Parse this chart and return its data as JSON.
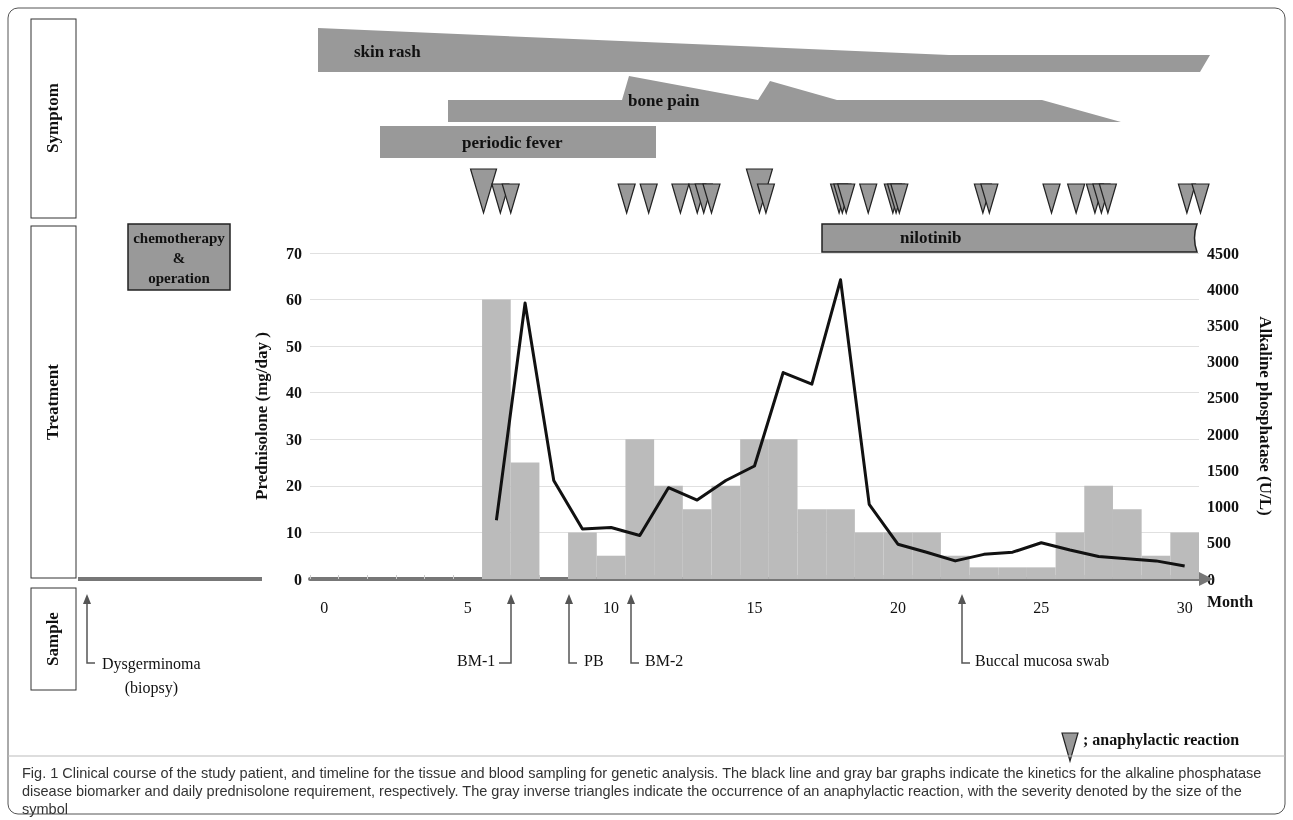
{
  "chart_data": {
    "type": "bar",
    "categories": [
      "0",
      null,
      null,
      null,
      null,
      "5",
      null,
      null,
      null,
      null,
      "10",
      null,
      null,
      null,
      null,
      "15",
      null,
      null,
      null,
      null,
      "20",
      null,
      null,
      null,
      null,
      "25",
      null,
      null,
      null,
      null,
      "30"
    ],
    "xlabel": "Month",
    "ylabel": "Prednisolone (mg/day )",
    "y2label": "Alkaline phosphatase (U/L)",
    "ylim": [
      0,
      70
    ],
    "yticks": [
      0,
      10,
      20,
      30,
      40,
      50,
      60,
      70
    ],
    "y2lim": [
      0,
      4500
    ],
    "y2ticks": [
      0,
      500,
      1000,
      1500,
      2000,
      2500,
      3000,
      3500,
      4000,
      4500
    ],
    "grid": "y",
    "marker": "none",
    "series": [
      {
        "color": "#bbbbbb",
        "values": [
          null,
          null,
          null,
          null,
          null,
          null,
          60,
          25,
          null,
          10,
          5,
          30,
          20,
          15,
          20,
          30,
          30,
          15,
          15,
          10,
          10,
          10,
          5,
          2.5,
          2.5,
          2.5,
          10,
          20,
          15,
          5,
          10
        ]
      },
      {
        "type": "line",
        "axis": "y2",
        "color": "#111111",
        "values": [
          null,
          null,
          null,
          null,
          null,
          null,
          810,
          3810,
          1360,
          690,
          710,
          600,
          1260,
          1090,
          1360,
          1560,
          2850,
          2690,
          4130,
          1030,
          480,
          370,
          250,
          340,
          370,
          500,
          400,
          310,
          280,
          250,
          180
        ]
      }
    ],
    "annotations": [
      "skin rash",
      "bone pain",
      "periodic fever",
      "Symptom",
      "Treatment",
      "Sample",
      "chemotherapy\n&\noperation",
      "nilotinib",
      "Dysgerminoma\n(biopsy)",
      "BM-1",
      "PB",
      "BM-2",
      "Buccal mucosa swab",
      "; anaphylactic reaction",
      "Fig. 1 Clinical course of the study patient, and timeline for the tissue and blood sampling for genetic analysis. The black line and gray bar graphs indicate the kinetics for the alkaline phosphatase disease biomarker and daily prednisolone requirement, respectively. The gray inverse triangles indicate the occurrence of an anaphylactic reaction, with the severity denoted by the size of the symbol"
    ]
  }
}
